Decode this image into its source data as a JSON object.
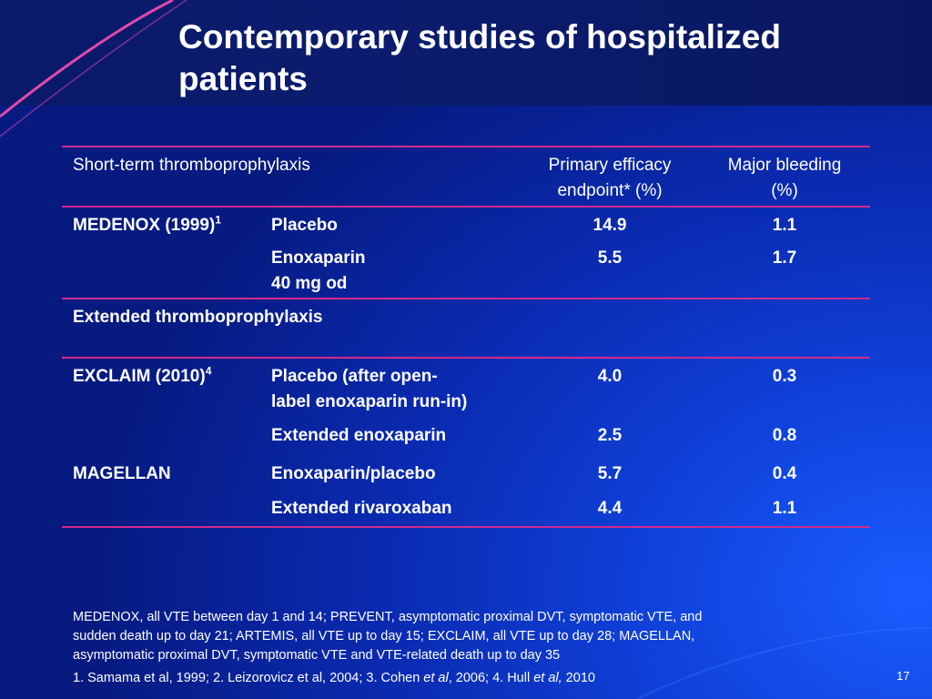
{
  "slide": {
    "title_line1": "Contemporary studies of hospitalized",
    "title_line2": "patients",
    "page_number": "17"
  },
  "table": {
    "header": {
      "col1": "Short-term thromboprophylaxis",
      "col3_line1": "Primary efficacy",
      "col3_line2": "endpoint* (%)",
      "col4_line1": "Major bleeding",
      "col4_line2": "(%)"
    },
    "medenox": {
      "study": "MEDENOX (1999)",
      "ref": "1",
      "rows": [
        {
          "arm": "Placebo",
          "efficacy": "14.9",
          "bleeding": "1.1"
        },
        {
          "arm_line1": "Enoxaparin",
          "arm_line2": "40 mg od",
          "efficacy": "5.5",
          "bleeding": "1.7"
        }
      ]
    },
    "extended_header": "Extended thromboprophylaxis",
    "exclaim": {
      "study": "EXCLAIM (2010)",
      "ref": "4",
      "rows": [
        {
          "arm_line1": "Placebo (after open-",
          "arm_line2": "label enoxaparin run-in)",
          "efficacy": "4.0",
          "bleeding": "0.3"
        },
        {
          "arm": "Extended enoxaparin",
          "efficacy": "2.5",
          "bleeding": "0.8"
        }
      ]
    },
    "magellan": {
      "study": "MAGELLAN",
      "rows": [
        {
          "arm": "Enoxaparin/placebo",
          "efficacy": "5.7",
          "bleeding": "0.4"
        },
        {
          "arm": "Extended rivaroxaban",
          "efficacy": "4.4",
          "bleeding": "1.1"
        }
      ]
    }
  },
  "footnote": {
    "line1": "MEDENOX, all VTE between day 1 and 14; PREVENT, asymptomatic proximal DVT, symptomatic VTE, and",
    "line2": "sudden death up to day 21; ARTEMIS, all VTE up to day 15; EXCLAIM, all VTE up to day 28; MAGELLAN,",
    "line3": "asymptomatic proximal DVT, symptomatic VTE and VTE-related death up to day 35"
  },
  "references": {
    "part1": "1. Samama et al, 1999; 2. Leizorovicz et al, 2004; 3. Cohen ",
    "etal1": "et al",
    "part2": ", 2006; 4. Hull ",
    "etal2": "et al,",
    "part3": " 2010"
  },
  "colors": {
    "rule": "#d22a8c",
    "swoosh": "#e04aa8",
    "background": "#0a2ab0"
  }
}
